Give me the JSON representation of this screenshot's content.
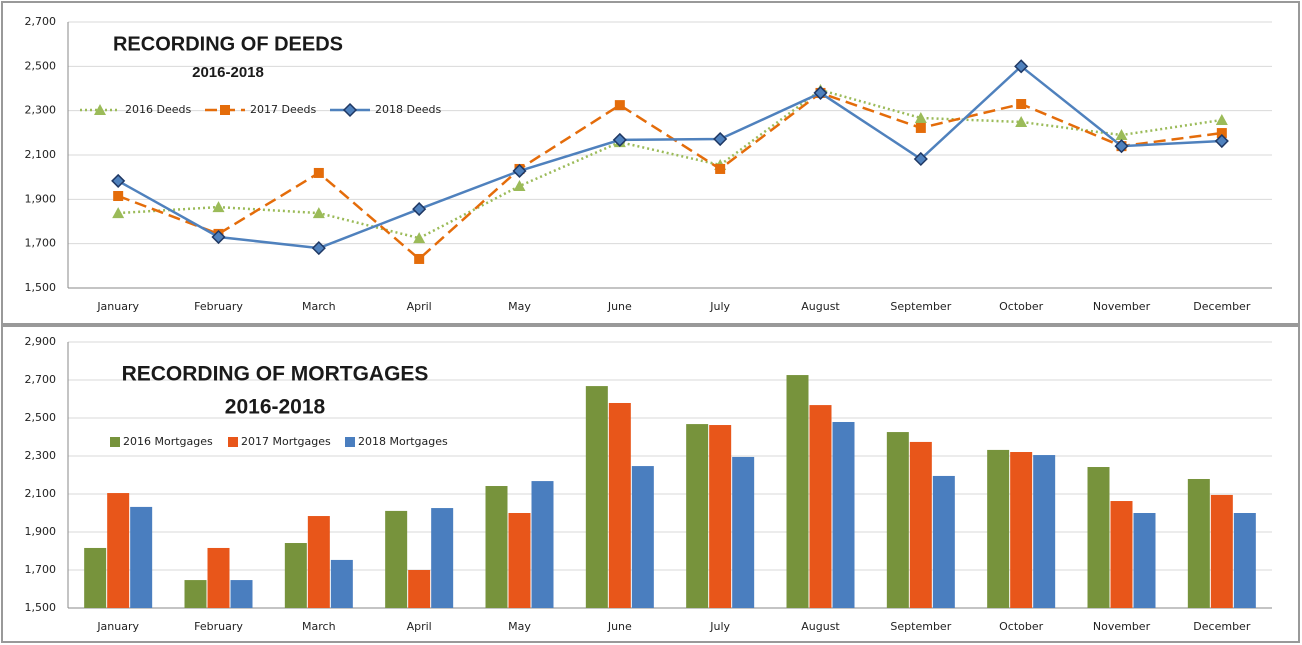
{
  "chart_data": [
    {
      "type": "line",
      "title": "RECORDING OF DEEDS",
      "subtitle": "2016-2018",
      "categories": [
        "January",
        "February",
        "March",
        "April",
        "May",
        "June",
        "July",
        "August",
        "September",
        "October",
        "November",
        "December"
      ],
      "series": [
        {
          "name": "2016 Deeds",
          "color": "#9bbb59",
          "dash": "dotted",
          "marker": "triangle",
          "values": [
            1838,
            1865,
            1838,
            1725,
            1960,
            2158,
            2055,
            2393,
            2267,
            2249,
            2190,
            2258
          ]
        },
        {
          "name": "2017 Deeds",
          "color": "#e46c0a",
          "dash": "dashed",
          "marker": "square",
          "values": [
            1915,
            1744,
            2019,
            1631,
            2037,
            2325,
            2037,
            2380,
            2222,
            2330,
            2140,
            2199
          ]
        },
        {
          "name": "2018 Deeds",
          "color": "#4f81bd",
          "dash": "solid",
          "marker": "diamond",
          "values": [
            1983,
            1730,
            1680,
            1856,
            2028,
            2168,
            2172,
            2380,
            2082,
            2500,
            2140,
            2163
          ]
        }
      ],
      "ylim": [
        1500,
        2700
      ],
      "yticks": [
        {
          "value": 1500,
          "label": "1,500"
        },
        {
          "value": 1700,
          "label": "1,700"
        },
        {
          "value": 1900,
          "label": "1,900"
        },
        {
          "value": 2100,
          "label": "2,100"
        },
        {
          "value": 2300,
          "label": "2,300"
        },
        {
          "value": 2500,
          "label": "2,500"
        },
        {
          "value": 2700,
          "label": "2,700"
        }
      ],
      "grid": true,
      "legend": "top-left"
    },
    {
      "type": "bar",
      "title": "RECORDING OF MORTGAGES",
      "subtitle": "2016-2018",
      "categories": [
        "January",
        "February",
        "March",
        "April",
        "May",
        "June",
        "July",
        "August",
        "September",
        "October",
        "November",
        "December"
      ],
      "series": [
        {
          "name": "2016 Mortgages",
          "color": "#77933c",
          "values": [
            1816,
            1647,
            1842,
            2011,
            2142,
            2668,
            2468,
            2726,
            2426,
            2332,
            2242,
            2179
          ]
        },
        {
          "name": "2017 Mortgages",
          "color": "#e8561a",
          "values": [
            2105,
            1816,
            1984,
            1700,
            2000,
            2579,
            2463,
            2568,
            2374,
            2321,
            2063,
            2095
          ]
        },
        {
          "name": "2018 Mortgages",
          "color": "#4a7ebf",
          "values": [
            2032,
            1647,
            1753,
            2026,
            2168,
            2247,
            2295,
            2479,
            2195,
            2305,
            2000,
            2000
          ]
        }
      ],
      "ylim": [
        1500,
        2900
      ],
      "yticks": [
        {
          "value": 1500,
          "label": "1,500"
        },
        {
          "value": 1700,
          "label": "1,700"
        },
        {
          "value": 1900,
          "label": "1,900"
        },
        {
          "value": 2100,
          "label": "2,100"
        },
        {
          "value": 2300,
          "label": "2,300"
        },
        {
          "value": 2500,
          "label": "2,500"
        },
        {
          "value": 2700,
          "label": "2,700"
        },
        {
          "value": 2900,
          "label": "2,900"
        }
      ],
      "grid": true,
      "legend": "top-left"
    }
  ]
}
